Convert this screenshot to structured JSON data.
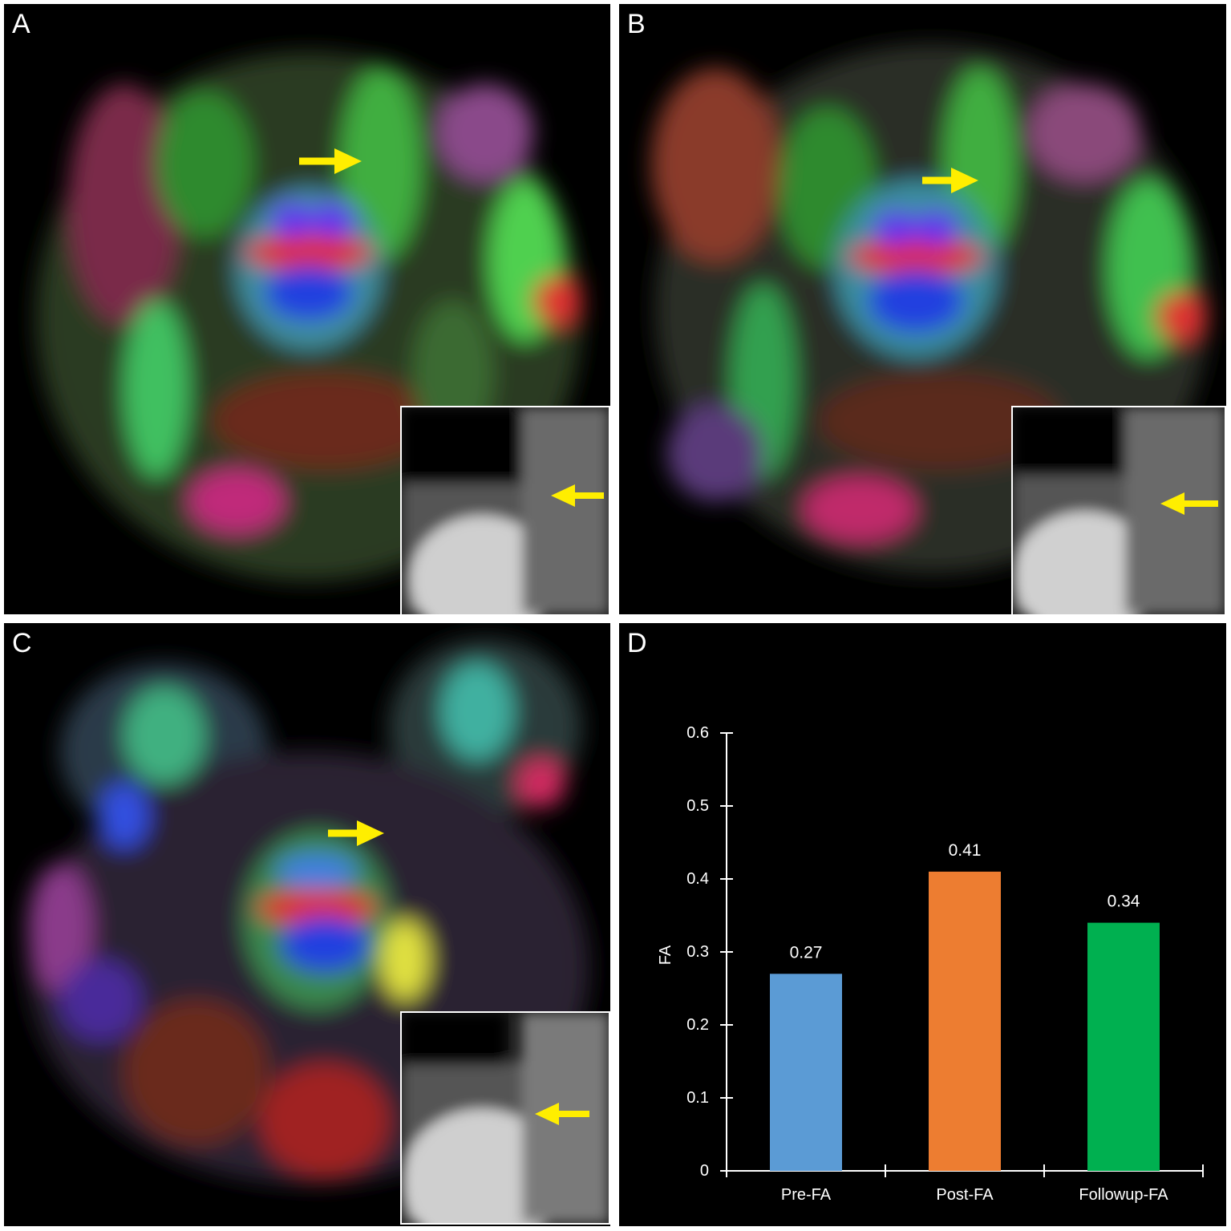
{
  "panels": {
    "a": {
      "label": "A"
    },
    "b": {
      "label": "B"
    },
    "c": {
      "label": "C"
    },
    "d": {
      "label": "D"
    }
  },
  "colors": {
    "arrow": "#ffee00",
    "axis": "#ffffff",
    "background": "#000000"
  },
  "chart_data": {
    "type": "bar",
    "title": "",
    "xlabel": "",
    "ylabel": "FA",
    "categories": [
      "Pre-FA",
      "Post-FA",
      "Followup-FA"
    ],
    "values": [
      0.27,
      0.41,
      0.34
    ],
    "value_labels": [
      "0.27",
      "0.41",
      "0.34"
    ],
    "bar_colors": [
      "#5b9bd5",
      "#ed7d31",
      "#00b050"
    ],
    "ylim": [
      0,
      0.6
    ],
    "yticks": [
      0,
      0.1,
      0.2,
      0.3,
      0.4,
      0.5,
      0.6
    ],
    "ytick_labels": [
      "0",
      "0.1",
      "0.2",
      "0.3",
      "0.4",
      "0.5",
      "0.6"
    ],
    "grid": false,
    "legend": "none"
  }
}
